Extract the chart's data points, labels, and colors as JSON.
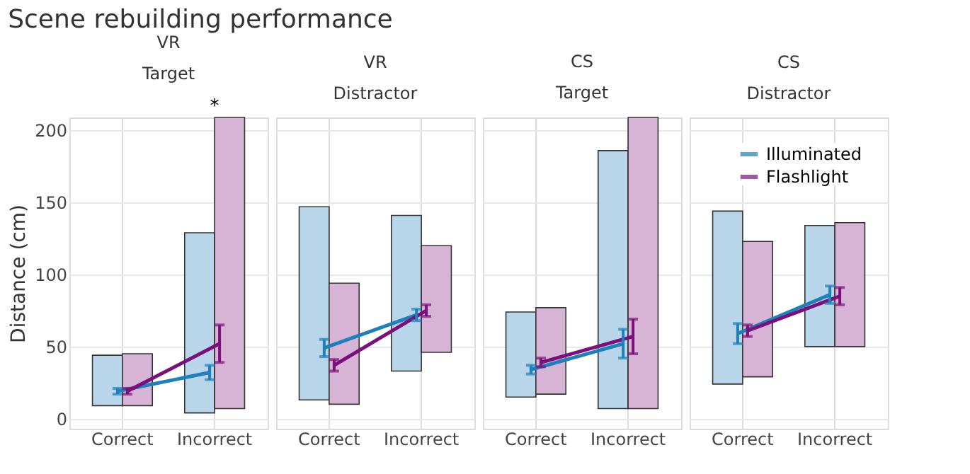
{
  "chart_data": [
    {
      "type": "line",
      "title": "VR",
      "subtitle": "Target",
      "ylabel": "Distance (cm)",
      "categories": [
        "Correct",
        "Incorrect"
      ],
      "ylim": [
        -7,
        209
      ],
      "yticks": [
        0,
        50,
        100,
        150,
        200
      ],
      "grid": true,
      "legend": false,
      "annotations": [
        "Scene rebuilding performance",
        {
          "text": "*",
          "x": "Incorrect",
          "y": 209
        }
      ],
      "series": [
        {
          "type": "bar",
          "color": "#b9d5ea",
          "base": [
            9,
            4
          ],
          "values": [
            35,
            125
          ]
        },
        {
          "type": "bar",
          "color": "#d7b4d6",
          "base": [
            9,
            7
          ],
          "values": [
            36,
            202
          ]
        },
        {
          "color": "#1f7fba",
          "values": [
            19,
            32
          ],
          "errors": [
            2,
            5
          ]
        },
        {
          "color": "#7b0f7b",
          "values": [
            19,
            52
          ],
          "errors": [
            2,
            13
          ]
        }
      ]
    },
    {
      "type": "line",
      "title": "VR",
      "subtitle": "Distractor",
      "categories": [
        "Correct",
        "Incorrect"
      ],
      "ylim": [
        -7,
        209
      ],
      "yticks": [
        0,
        50,
        100,
        150,
        200
      ],
      "grid": true,
      "legend": false,
      "tick_labels": "x",
      "series": [
        {
          "type": "bar",
          "color": "#b9d5ea",
          "base": [
            13,
            33
          ],
          "values": [
            134,
            108
          ]
        },
        {
          "type": "bar",
          "color": "#d7b4d6",
          "base": [
            10,
            46
          ],
          "values": [
            84,
            74
          ]
        },
        {
          "color": "#1f7fba",
          "values": [
            49,
            72
          ],
          "errors": [
            6,
            4
          ]
        },
        {
          "color": "#7b0f7b",
          "values": [
            37,
            75
          ],
          "errors": [
            4,
            4
          ]
        }
      ]
    },
    {
      "type": "line",
      "title": "CS",
      "subtitle": "Target",
      "categories": [
        "Correct",
        "Incorrect"
      ],
      "ylim": [
        -7,
        209
      ],
      "yticks": [
        0,
        50,
        100,
        150,
        200
      ],
      "grid": true,
      "legend": false,
      "tick_labels": "x",
      "series": [
        {
          "type": "bar",
          "color": "#b9d5ea",
          "base": [
            15,
            7
          ],
          "values": [
            59,
            179
          ]
        },
        {
          "type": "bar",
          "color": "#d7b4d6",
          "base": [
            17,
            7
          ],
          "values": [
            60,
            202
          ]
        },
        {
          "color": "#1f7fba",
          "values": [
            34,
            52
          ],
          "errors": [
            3,
            10
          ]
        },
        {
          "color": "#7b0f7b",
          "values": [
            39,
            57
          ],
          "errors": [
            3,
            12
          ]
        }
      ]
    },
    {
      "type": "line",
      "title": "CS",
      "subtitle": "Distractor",
      "categories": [
        "Correct",
        "Incorrect"
      ],
      "ylim": [
        -7,
        209
      ],
      "yticks": [
        0,
        50,
        100,
        150,
        200
      ],
      "grid": true,
      "legend": "top right",
      "tick_labels": "x",
      "series": [
        {
          "type": "bar",
          "color": "#b9d5ea",
          "base": [
            24,
            50
          ],
          "values": [
            120,
            84
          ]
        },
        {
          "type": "bar",
          "color": "#d7b4d6",
          "base": [
            29,
            50
          ],
          "values": [
            94,
            86
          ]
        },
        {
          "name": "Illuminated",
          "color": "#1f7fba",
          "values": [
            59,
            86
          ],
          "errors": [
            7,
            6
          ]
        },
        {
          "name": "Flashlight",
          "color": "#7b0f7b",
          "values": [
            61,
            85
          ],
          "errors": [
            4,
            6
          ]
        }
      ]
    }
  ]
}
